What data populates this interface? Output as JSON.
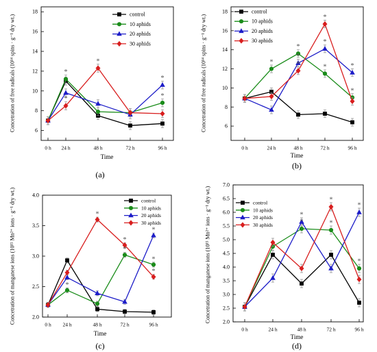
{
  "chart_data": [
    {
      "caption": "(a)",
      "type": "line",
      "categories": [
        "0 h",
        "24 h",
        "48 h",
        "72 h",
        "96 h"
      ],
      "xlabel": "Time",
      "ylabel": "Concetration of free radicals (10¹⁴ spins · g⁻¹ dry wt.)",
      "ylim": [
        5,
        18.5
      ],
      "yticks": [
        "6",
        "8",
        "10",
        "12",
        "14",
        "16",
        "18"
      ],
      "legend": "top-right",
      "error": 0.4,
      "series": [
        {
          "name": "control",
          "color": "#000000",
          "marker": "square",
          "values": [
            7.0,
            11.0,
            7.5,
            6.5,
            6.7
          ]
        },
        {
          "name": "10 aphids",
          "color": "#1a8c1a",
          "marker": "circle",
          "values": [
            7.0,
            11.2,
            7.9,
            7.8,
            8.8
          ]
        },
        {
          "name": "20 aphids",
          "color": "#1c1cc8",
          "marker": "triangle",
          "values": [
            7.0,
            9.8,
            8.7,
            7.6,
            10.6
          ]
        },
        {
          "name": "30 aphids",
          "color": "#d81e1e",
          "marker": "diamond",
          "values": [
            7.0,
            8.5,
            12.3,
            7.8,
            7.7
          ]
        }
      ],
      "annotations": [
        {
          "series": 1,
          "x": 1,
          "text": "*"
        },
        {
          "series": 3,
          "x": 1,
          "text": "*"
        },
        {
          "series": 3,
          "x": 2,
          "text": "*"
        },
        {
          "series": 2,
          "x": 4,
          "text": "*"
        },
        {
          "series": 1,
          "x": 4,
          "text": "*"
        }
      ]
    },
    {
      "caption": "(b)",
      "type": "line",
      "categories": [
        "0 h",
        "24 h",
        "48 h",
        "72 h",
        "96 h"
      ],
      "xlabel": "Time",
      "ylabel": "Concetration of free radicals (10¹⁴ spins · g⁻¹ dry wt.)",
      "ylim": [
        4.5,
        18.5
      ],
      "yticks": [
        "6",
        "8",
        "10",
        "12",
        "14",
        "16",
        "18"
      ],
      "legend": "top-left",
      "error": 0.4,
      "series": [
        {
          "name": "control",
          "color": "#000000",
          "marker": "square",
          "values": [
            8.9,
            9.6,
            7.2,
            7.3,
            6.4
          ]
        },
        {
          "name": "10 aphids",
          "color": "#1a8c1a",
          "marker": "circle",
          "values": [
            8.9,
            12.0,
            13.6,
            11.5,
            9.0
          ]
        },
        {
          "name": "20 aphids",
          "color": "#1c1cc8",
          "marker": "triangle",
          "values": [
            8.9,
            7.7,
            12.6,
            14.1,
            11.6
          ]
        },
        {
          "name": "30 aphids",
          "color": "#d81e1e",
          "marker": "diamond",
          "values": [
            8.9,
            9.1,
            11.8,
            16.7,
            8.6
          ]
        }
      ],
      "annotations": [
        {
          "series": 1,
          "x": 1,
          "text": "*"
        },
        {
          "series": 1,
          "x": 2,
          "text": "*"
        },
        {
          "series": 2,
          "x": 2,
          "text": "*"
        },
        {
          "series": 3,
          "x": 2,
          "text": "*"
        },
        {
          "series": 3,
          "x": 3,
          "text": "*"
        },
        {
          "series": 2,
          "x": 3,
          "text": "*"
        },
        {
          "series": 1,
          "x": 3,
          "text": "*"
        },
        {
          "series": 2,
          "x": 4,
          "text": "*"
        },
        {
          "series": 1,
          "x": 4,
          "text": "*"
        }
      ]
    },
    {
      "caption": "(c)",
      "type": "line",
      "categories": [
        "0 h",
        "24 h",
        "48 h",
        "72 h",
        "96 h"
      ],
      "xlabel": "Time",
      "ylabel": "Concetration of manganese ions (10¹⁵ Mn²⁺ ions · g⁻¹ dry wt.)",
      "ylim": [
        2.0,
        4.0
      ],
      "yticks": [
        "2.0",
        "2.5",
        "3.0",
        "3.5",
        "4.0"
      ],
      "legend": "top-right",
      "error": 0.04,
      "series": [
        {
          "name": "control",
          "color": "#000000",
          "marker": "square",
          "values": [
            2.2,
            2.93,
            2.13,
            2.09,
            2.08
          ]
        },
        {
          "name": "10 aphids",
          "color": "#1a8c1a",
          "marker": "circle",
          "values": [
            2.2,
            2.44,
            2.22,
            3.02,
            2.86
          ]
        },
        {
          "name": "20 aphids",
          "color": "#1c1cc8",
          "marker": "triangle",
          "values": [
            2.2,
            2.65,
            2.39,
            2.25,
            3.34
          ]
        },
        {
          "name": "30 aphids",
          "color": "#d81e1e",
          "marker": "diamond",
          "values": [
            2.2,
            2.73,
            3.6,
            3.18,
            2.66
          ]
        }
      ],
      "annotations": [
        {
          "series": 1,
          "x": 1,
          "text": "*"
        },
        {
          "series": 3,
          "x": 2,
          "text": "*"
        },
        {
          "series": 3,
          "x": 3,
          "text": "*"
        },
        {
          "series": 1,
          "x": 3,
          "text": "*"
        },
        {
          "series": 2,
          "x": 4,
          "text": "*"
        },
        {
          "series": 1,
          "x": 4,
          "text": "*"
        },
        {
          "series": 3,
          "x": 4,
          "text": "*"
        }
      ]
    },
    {
      "caption": "(d)",
      "type": "line",
      "categories": [
        "0 h",
        "24 h",
        "48 h",
        "72 h",
        "96 h"
      ],
      "xlabel": "Time",
      "ylabel": "Concetration of manganese ions (10¹⁵ Mn²⁺ ions · g⁻¹ dry wt.)",
      "ylim": [
        2.0,
        7.0
      ],
      "yticks": [
        "2.0",
        "2.5",
        "3.0",
        "3.5",
        "4.0",
        "4.5",
        "5.0",
        "5.5",
        "6.0",
        "6.5",
        "7.0"
      ],
      "legend": "top-left",
      "error": 0.15,
      "series": [
        {
          "name": "control",
          "color": "#000000",
          "marker": "square",
          "values": [
            2.55,
            4.45,
            3.4,
            4.45,
            2.7
          ]
        },
        {
          "name": "10 aphids",
          "color": "#1a8c1a",
          "marker": "circle",
          "values": [
            2.55,
            4.75,
            5.4,
            5.35,
            3.95
          ]
        },
        {
          "name": "20 aphids",
          "color": "#1c1cc8",
          "marker": "triangle",
          "values": [
            2.55,
            3.6,
            5.65,
            3.95,
            6.0
          ]
        },
        {
          "name": "30 aphids",
          "color": "#d81e1e",
          "marker": "diamond",
          "values": [
            2.55,
            4.9,
            3.95,
            6.2,
            3.55
          ]
        }
      ],
      "annotations": [
        {
          "series": 2,
          "x": 2,
          "text": "*"
        },
        {
          "series": 1,
          "x": 2,
          "text": "*"
        },
        {
          "series": 3,
          "x": 3,
          "text": "*"
        },
        {
          "series": 1,
          "x": 3,
          "text": "*"
        },
        {
          "series": 2,
          "x": 4,
          "text": "*"
        },
        {
          "series": 1,
          "x": 4,
          "text": "*"
        }
      ]
    }
  ]
}
